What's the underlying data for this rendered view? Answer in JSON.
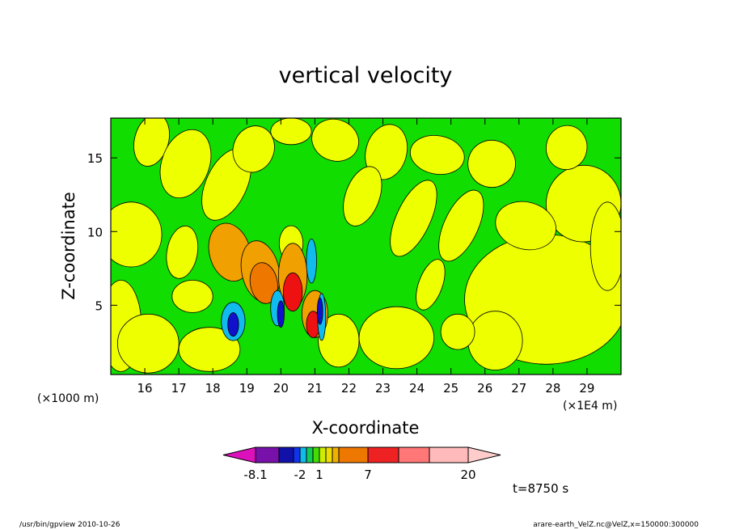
{
  "chart_data": {
    "type": "heatmap",
    "title": "vertical velocity",
    "xlabel": "X-coordinate",
    "ylabel": "Z-coordinate",
    "x_unit": "(×1E4 m)",
    "y_unit": "(×1000 m)",
    "xlim": [
      15.0,
      30.0
    ],
    "ylim": [
      0.3,
      17.7
    ],
    "x_ticks": [
      "16",
      "17",
      "18",
      "19",
      "20",
      "21",
      "22",
      "23",
      "24",
      "25",
      "26",
      "27",
      "28",
      "29"
    ],
    "y_ticks": [
      "5",
      "10",
      "15"
    ],
    "time_label": "t=8750 s",
    "colorbar": {
      "colors": [
        "#dd11bb",
        "#7711aa",
        "#1111aa",
        "#1133ee",
        "#11bbee",
        "#11cc55",
        "#44dd00",
        "#ccee00",
        "#eedd00",
        "#f0b000",
        "#ee7700",
        "#ee2222",
        "#ff7777",
        "#ffbbbb",
        "#ffcccc"
      ],
      "tick_labels": [
        "-8.1",
        "-2",
        "1",
        "7",
        "20"
      ]
    },
    "level_colors": {
      "strong_down": "#1111cc",
      "down": "#11bbee",
      "weak": "#11dd00",
      "weak_up": "#eeff00",
      "up": "#f0a000",
      "moderate_up": "#ee7700",
      "strong_up": "#ee1111"
    }
  },
  "footer": {
    "left": "/usr/bin/gpview   2010-10-26",
    "right": "arare-earth_VelZ.nc@VelZ,x=150000:300000"
  }
}
